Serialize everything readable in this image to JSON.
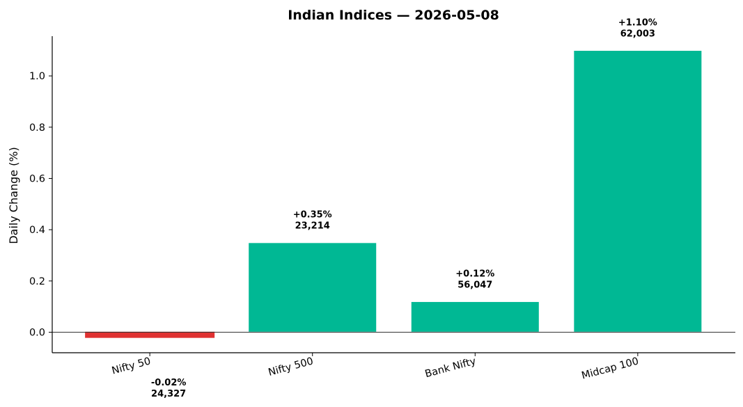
{
  "chart_data": {
    "type": "bar",
    "title": "Indian Indices — 2026-05-08",
    "ylabel": "Daily Change (%)",
    "xlabel": "",
    "categories": [
      "Nifty 50",
      "Nifty 500",
      "Bank Nifty",
      "Midcap 100"
    ],
    "values": [
      -0.02,
      0.35,
      0.12,
      1.1
    ],
    "value_labels": [
      "-0.02%",
      "+0.35%",
      "+0.12%",
      "+1.10%"
    ],
    "index_levels": [
      "24,327",
      "23,214",
      "56,047",
      "62,003"
    ],
    "ylim": [
      -0.08,
      1.155
    ],
    "yticks": [
      0.0,
      0.2,
      0.4,
      0.6,
      0.8,
      1.0
    ],
    "ytick_labels": [
      "0.0",
      "0.2",
      "0.4",
      "0.6",
      "0.8",
      "1.0"
    ],
    "colors": {
      "positive": "#00b894",
      "negative": "#e03131",
      "zero_line": "#333333"
    },
    "grid": false,
    "legend": "none"
  }
}
